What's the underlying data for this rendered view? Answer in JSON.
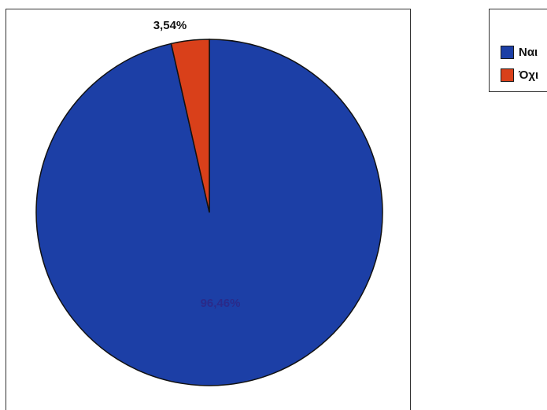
{
  "chart_data": {
    "type": "pie",
    "title": "",
    "categories": [
      "Ναι",
      "Όχι"
    ],
    "values": [
      96.46,
      3.54
    ],
    "value_labels": [
      "96,46%",
      "3,54%"
    ],
    "colors": [
      "#1c3fa6",
      "#d9401a"
    ],
    "legend_position": "top-right",
    "series": [
      {
        "values": [
          96.46,
          3.54
        ]
      }
    ]
  },
  "legend": {
    "items": [
      {
        "label": "Ναι",
        "color": "#1c3fa6"
      },
      {
        "label": "Όχι",
        "color": "#d9401a"
      }
    ]
  }
}
